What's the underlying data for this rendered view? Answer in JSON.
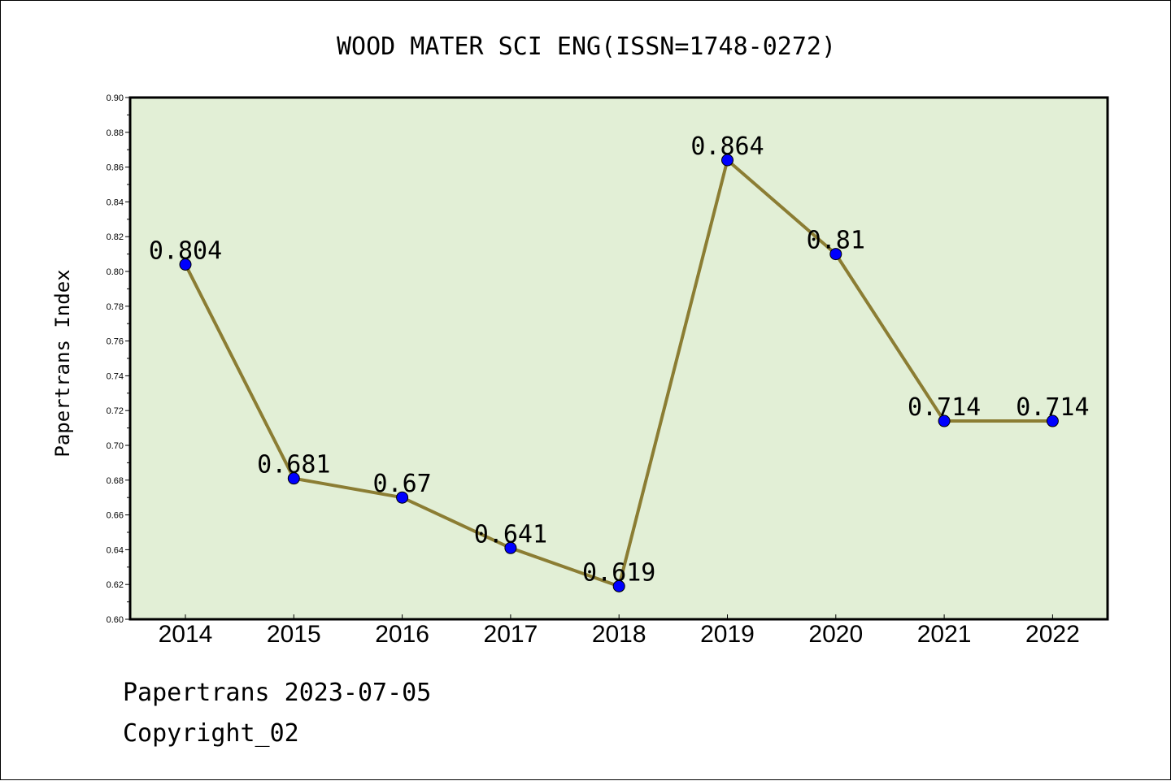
{
  "chart_data": {
    "type": "line",
    "title": "WOOD MATER SCI ENG(ISSN=1748-0272)",
    "xlabel": "",
    "ylabel": "Papertrans Index",
    "categories": [
      "2014",
      "2015",
      "2016",
      "2017",
      "2018",
      "2019",
      "2020",
      "2021",
      "2022"
    ],
    "values": [
      0.804,
      0.681,
      0.67,
      0.641,
      0.619,
      0.864,
      0.81,
      0.714,
      0.714
    ],
    "data_labels": [
      "0.804",
      "0.681",
      "0.67",
      "0.641",
      "0.619",
      "0.864",
      "0.81",
      "0.714",
      "0.714"
    ],
    "ylim": [
      0.6,
      0.9
    ],
    "yticks": [
      "0.60",
      "0.62",
      "0.64",
      "0.66",
      "0.68",
      "0.70",
      "0.72",
      "0.74",
      "0.76",
      "0.78",
      "0.80",
      "0.82",
      "0.84",
      "0.86",
      "0.88",
      "0.90"
    ],
    "grid": false,
    "colors": {
      "plot_background": "#e2efd6",
      "line": "#8b7d33",
      "marker": "#0000ff"
    }
  },
  "footer": {
    "date_line": "Papertrans 2023-07-05",
    "copyright": "Copyright_02"
  }
}
